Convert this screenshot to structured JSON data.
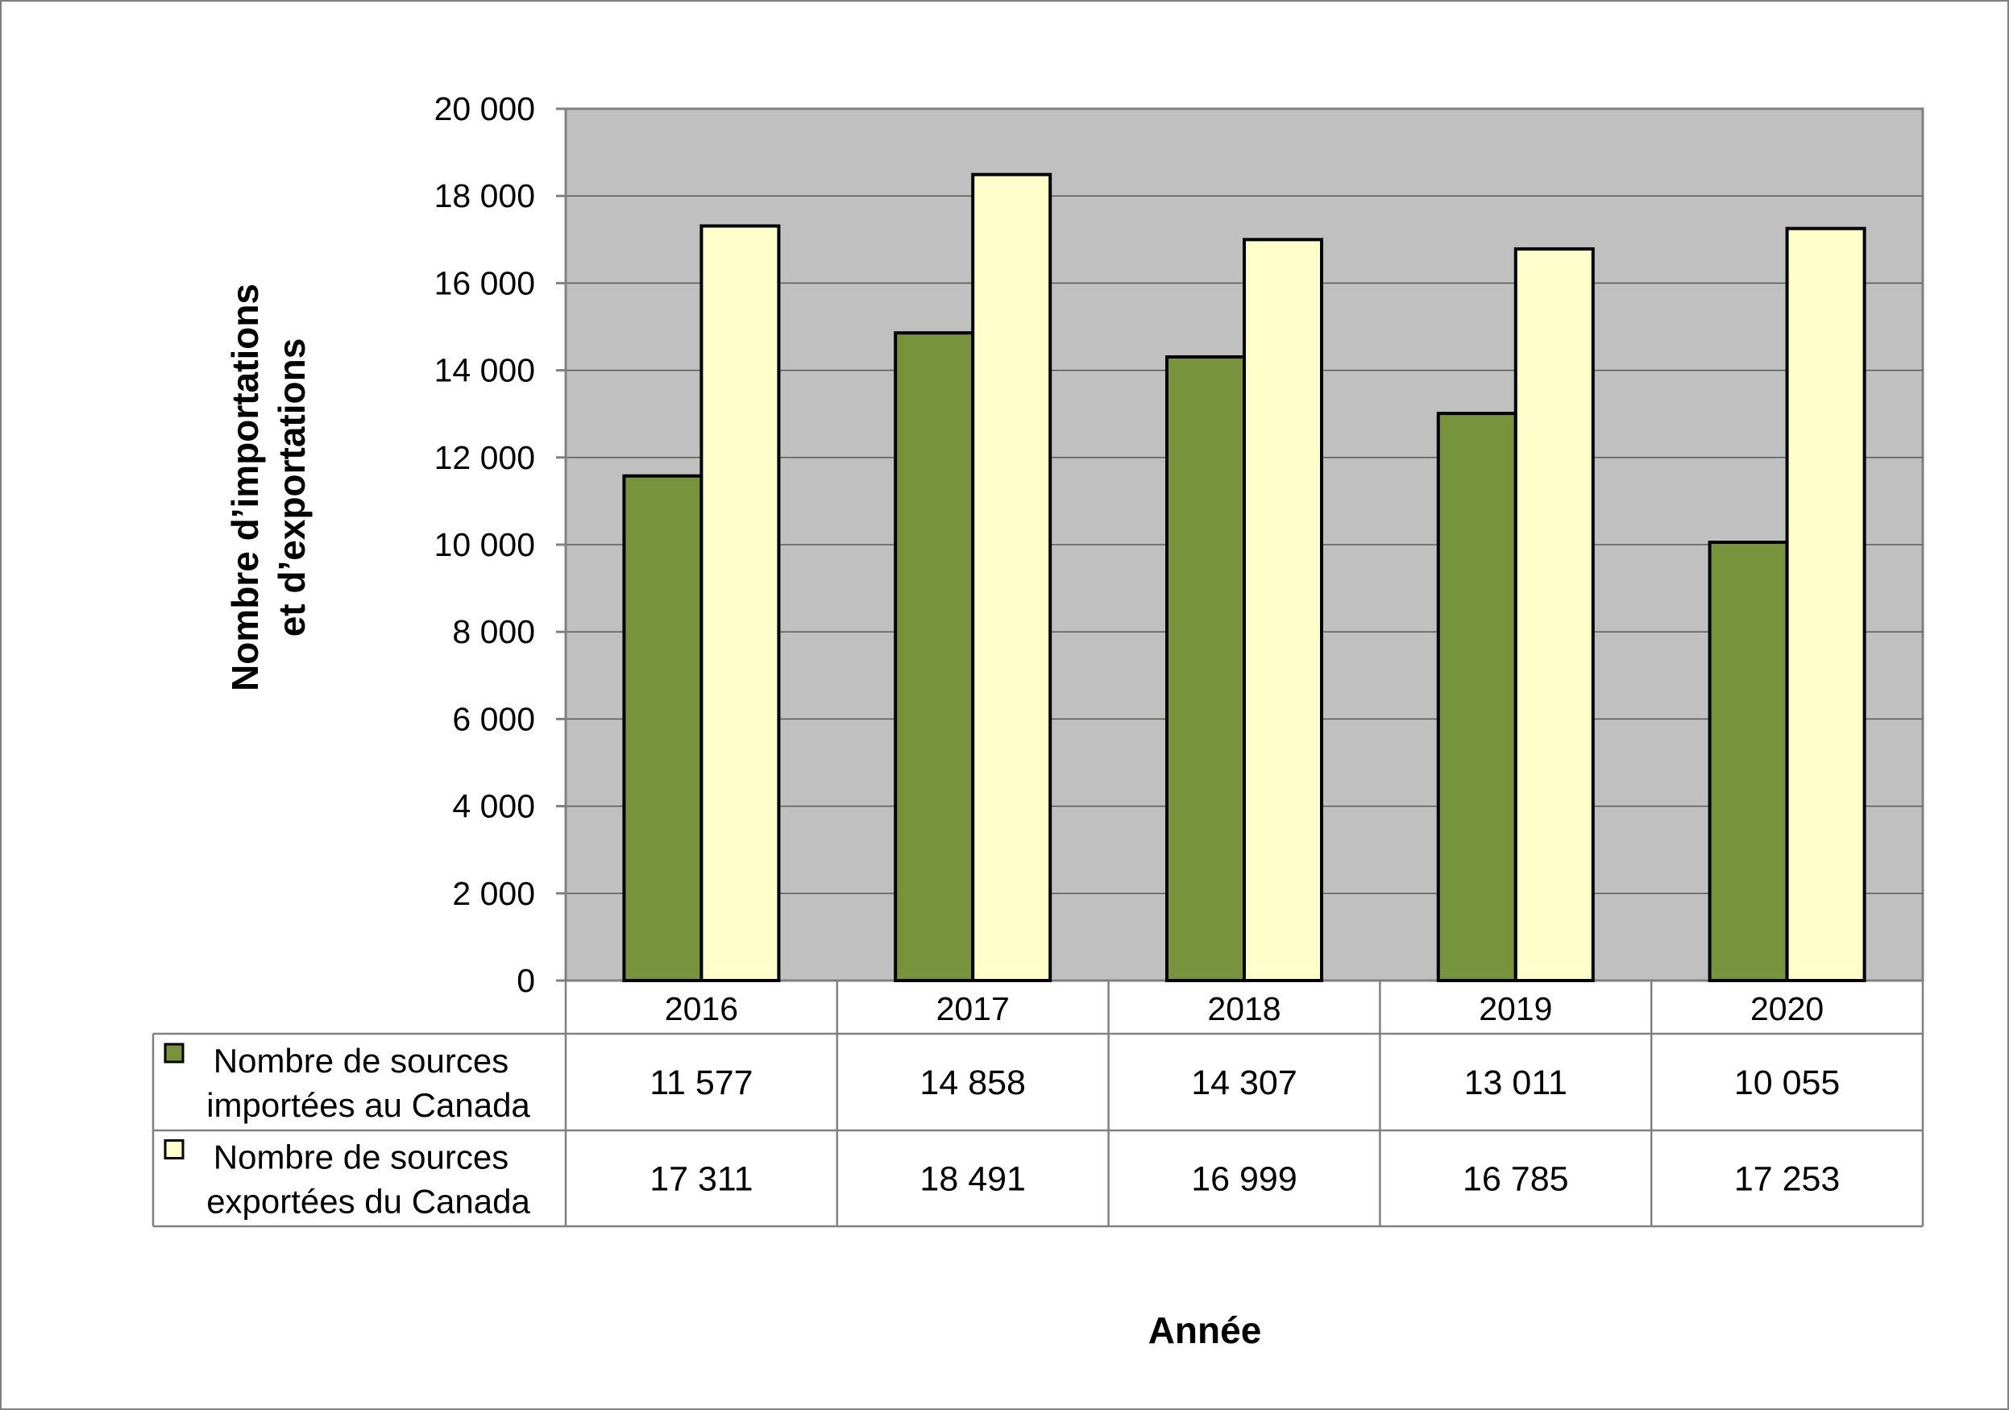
{
  "chart_data": {
    "type": "bar",
    "categories": [
      "2016",
      "2017",
      "2018",
      "2019",
      "2020"
    ],
    "series": [
      {
        "name_lines": [
          "Nombre de sources",
          "importées au Canada"
        ],
        "values": [
          11577,
          14858,
          14307,
          13011,
          10055
        ],
        "labels": [
          "11 577",
          "14 858",
          "14 307",
          "13 011",
          "10 055"
        ],
        "color": "#77933c"
      },
      {
        "name_lines": [
          "Nombre de sources",
          "exportées du Canada"
        ],
        "values": [
          17311,
          18491,
          16999,
          16785,
          17253
        ],
        "labels": [
          "17 311",
          "18 491",
          "16 999",
          "16 785",
          "17 253"
        ],
        "color": "#ffffcc"
      }
    ],
    "ylim": [
      0,
      20000
    ],
    "yticks": [
      0,
      2000,
      4000,
      6000,
      8000,
      10000,
      12000,
      14000,
      16000,
      18000,
      20000
    ],
    "ytick_labels": [
      "0",
      "2 000",
      "4 000",
      "6 000",
      "8 000",
      "10 000",
      "12 000",
      "14 000",
      "16 000",
      "18 000",
      "20 000"
    ],
    "ylabel_lines": [
      "Nombre d’importations",
      "et d’exportations"
    ],
    "xlabel": "Année",
    "grid": true,
    "plot_background": "#c0c0c0",
    "legend": "data table below x-axis"
  }
}
